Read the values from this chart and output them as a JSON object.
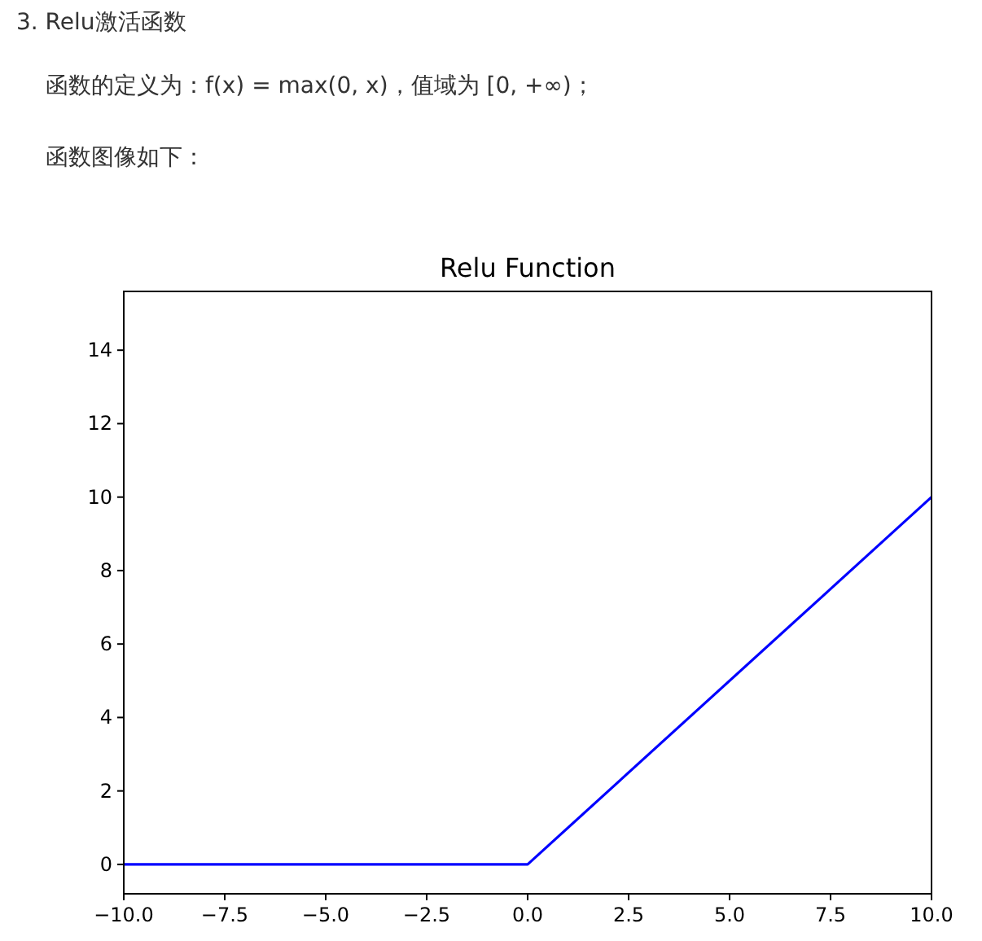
{
  "chart_data": {
    "type": "line",
    "title": "Relu Function",
    "annotations": [
      "3. Relu激活函数",
      "函数的定义为：f(x) = max(0, x)，值域为 [0, +∞)；",
      "函数图像如下："
    ],
    "x": [
      -10,
      0,
      10
    ],
    "series": [
      {
        "color": "#0000ff",
        "values": [
          0,
          0,
          10
        ]
      }
    ],
    "xlim": [
      -10,
      10
    ],
    "ylim": [
      -0.8,
      15.6
    ],
    "xticks": [
      {
        "value": -10,
        "label": "−10.0"
      },
      {
        "value": -7.5,
        "label": "−7.5"
      },
      {
        "value": -5,
        "label": "−5.0"
      },
      {
        "value": -2.5,
        "label": "−2.5"
      },
      {
        "value": 0,
        "label": "0.0"
      },
      {
        "value": 2.5,
        "label": "2.5"
      },
      {
        "value": 5,
        "label": "5.0"
      },
      {
        "value": 7.5,
        "label": "7.5"
      },
      {
        "value": 10,
        "label": "10.0"
      }
    ],
    "yticks": [
      0,
      2,
      4,
      6,
      8,
      10,
      12,
      14
    ]
  }
}
